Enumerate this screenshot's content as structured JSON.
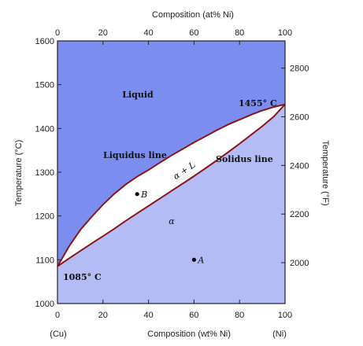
{
  "chart_data": {
    "type": "line",
    "title": "",
    "top_axis": {
      "label": "Composition (at% Ni)",
      "ticks": [
        "0",
        "20",
        "40",
        "60",
        "80",
        "100"
      ]
    },
    "bottom_axis": {
      "label": "Composition (wt% Ni)",
      "ticks": [
        "0",
        "20",
        "40",
        "60",
        "80",
        "100"
      ],
      "left_end_label": "(Cu)",
      "right_end_label": "(Ni)"
    },
    "left_axis": {
      "label": "Temperature (°C)",
      "range": [
        1000,
        1600
      ],
      "ticks": [
        "1000",
        "1100",
        "1200",
        "1300",
        "1400",
        "1500",
        "1600"
      ]
    },
    "right_axis": {
      "label": "Temperature (°F)",
      "range": [
        1832,
        2912
      ],
      "ticks": [
        "2000",
        "2200",
        "2400",
        "2600",
        "2800"
      ]
    },
    "xlim": [
      0,
      100
    ],
    "ylim": [
      1000,
      1600
    ],
    "series": [
      {
        "name": "Liquidus line",
        "x": [
          0,
          5,
          10,
          15,
          20,
          25,
          30,
          35,
          40,
          45,
          50,
          55,
          60,
          65,
          70,
          75,
          80,
          85,
          90,
          95,
          100
        ],
        "y": [
          1085,
          1130,
          1168,
          1198,
          1226,
          1251,
          1272,
          1290,
          1305,
          1322,
          1338,
          1353,
          1368,
          1382,
          1396,
          1409,
          1420,
          1431,
          1441,
          1449,
          1455
        ]
      },
      {
        "name": "Solidus line",
        "x": [
          0,
          5,
          10,
          15,
          20,
          25,
          30,
          35,
          40,
          45,
          50,
          55,
          60,
          65,
          70,
          75,
          80,
          85,
          90,
          95,
          100
        ],
        "y": [
          1085,
          1103,
          1120,
          1137,
          1154,
          1171,
          1189,
          1206,
          1223,
          1240,
          1257,
          1274,
          1291,
          1309,
          1327,
          1346,
          1365,
          1385,
          1405,
          1427,
          1455
        ]
      }
    ],
    "regions": {
      "liquid": "Liquid",
      "two_phase": "α + L",
      "alpha": "α"
    },
    "annotations": {
      "liquidus_text": "Liquidus line",
      "solidus_text": "Solidus line",
      "ni_melting": "1455° C",
      "cu_melting": "1085° C"
    },
    "points": [
      {
        "label": "B",
        "x": 35,
        "y": 1250
      },
      {
        "label": "A",
        "x": 60,
        "y": 1100
      }
    ],
    "colors": {
      "liquid": "#7b8ef0",
      "alpha": "#b3bcf5",
      "two_phase": "#ffffff",
      "boundary": "#8b1515",
      "axis": "#222222"
    },
    "grid": false
  }
}
